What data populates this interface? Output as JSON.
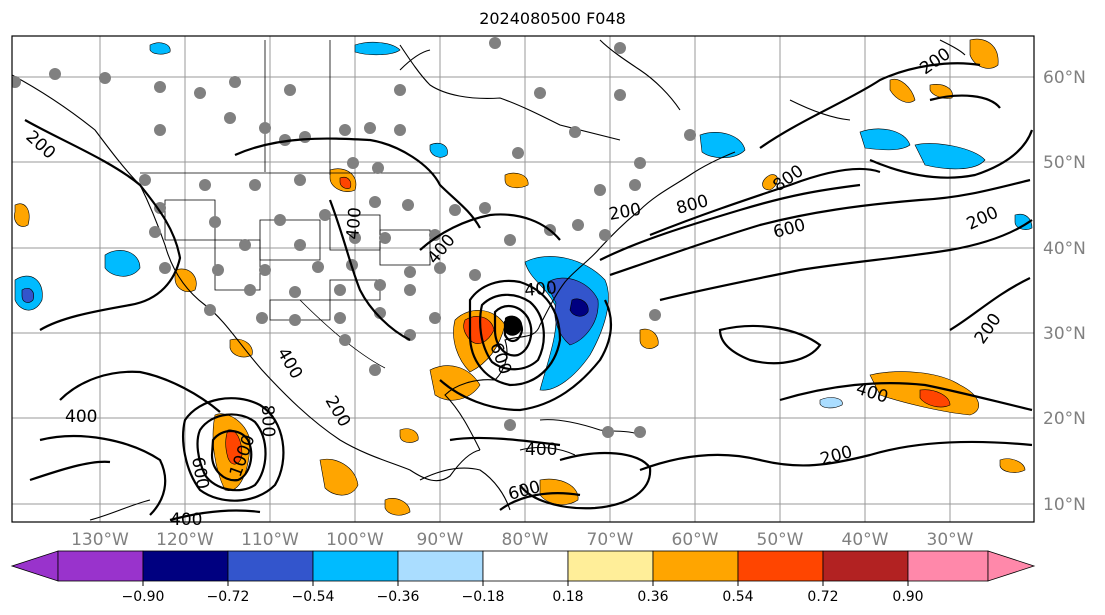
{
  "map": {
    "title": "2024080500 F048",
    "lon_labels": [
      "130°W",
      "120°W",
      "110°W",
      "100°W",
      "90°W",
      "80°W",
      "70°W",
      "60°W",
      "50°W",
      "40°W",
      "30°W"
    ],
    "lat_labels": [
      "60°N",
      "50°N",
      "40°N",
      "30°N",
      "20°N",
      "10°N"
    ],
    "contour_labels": [
      {
        "text": "200"
      },
      {
        "text": "200"
      },
      {
        "text": "200"
      },
      {
        "text": "200"
      },
      {
        "text": "200"
      },
      {
        "text": "200"
      },
      {
        "text": "400"
      },
      {
        "text": "400"
      },
      {
        "text": "400"
      },
      {
        "text": "400"
      },
      {
        "text": "400"
      },
      {
        "text": "400"
      },
      {
        "text": "400"
      },
      {
        "text": "600"
      },
      {
        "text": "600"
      },
      {
        "text": "600"
      },
      {
        "text": "800"
      },
      {
        "text": "800"
      },
      {
        "text": "800"
      },
      {
        "text": "1000"
      },
      {
        "text": "600"
      },
      {
        "text": "200"
      },
      {
        "text": "400"
      }
    ],
    "colors": {
      "neg_090_below": "#9933cc",
      "neg_090": "#000080",
      "neg_072": "#3355cc",
      "neg_054": "#00bbff",
      "neg_036": "#aaddff",
      "neutral": "#ffffff",
      "pos_018": "#ffee99",
      "pos_036": "#ffa500",
      "pos_054": "#ff4500",
      "pos_072": "#b22222",
      "pos_090_above": "#ff88aa",
      "station_dots": "#808080"
    }
  },
  "colorbar": {
    "tick_labels": [
      "−0.90",
      "−0.72",
      "−0.54",
      "−0.36",
      "−0.18",
      "0.18",
      "0.36",
      "0.54",
      "0.72",
      "0.90"
    ]
  }
}
